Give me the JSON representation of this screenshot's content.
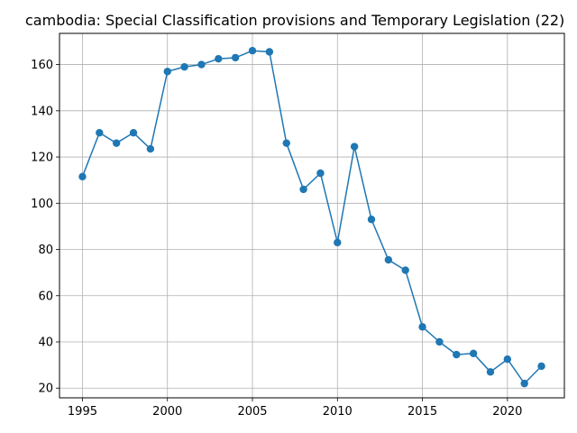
{
  "chart_data": {
    "type": "line",
    "title": "cambodia: Special Classification provisions and Temporary Legislation (22)",
    "xlabel": "",
    "ylabel": "",
    "x": [
      1995,
      1996,
      1997,
      1998,
      1999,
      2000,
      2001,
      2002,
      2003,
      2004,
      2005,
      2006,
      2007,
      2008,
      2009,
      2010,
      2011,
      2012,
      2013,
      2014,
      2015,
      2016,
      2017,
      2018,
      2019,
      2020,
      2021,
      2022
    ],
    "series": [
      {
        "values": [
          111.5,
          130.5,
          126,
          130.5,
          123.5,
          157,
          159,
          160,
          162.5,
          163,
          166,
          165.5,
          126,
          106,
          113,
          83,
          124.5,
          93,
          75.5,
          71,
          46.5,
          40,
          34.5,
          35,
          27,
          32.5,
          22,
          29.5
        ]
      }
    ],
    "xlim": [
      1993.65,
      2023.35
    ],
    "ylim": [
      15.8,
      173.5
    ],
    "xticks": [
      1995,
      2000,
      2005,
      2010,
      2015,
      2020
    ],
    "yticks": [
      20,
      40,
      60,
      80,
      100,
      120,
      140,
      160
    ],
    "grid": true,
    "line_color": "#1f77b4",
    "axes_color": "#000000",
    "grid_color": "#b0b0b0"
  }
}
